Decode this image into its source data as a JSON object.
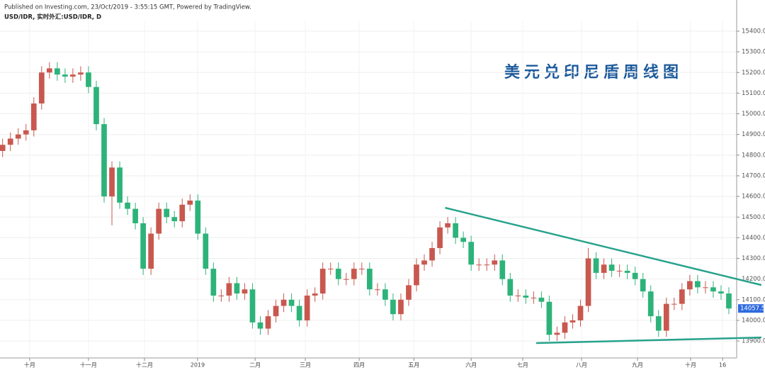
{
  "chart_data": {
    "type": "candlestick",
    "published": "Published on Investing.com, 23/Oct/2019 - 3:55:15 GMT, Powered by TradingView.",
    "symbol": "USD/IDR, 实时外汇:USD/IDR, D",
    "title": "美元兑印尼盾周线图",
    "up_color": "#c8584f",
    "down_color": "#2db37a",
    "trendline_color": "#26a28c",
    "price_label_color": "#2f6ae0",
    "grid": true,
    "xlim": [
      -1,
      282
    ],
    "ylim": [
      13818,
      15448
    ],
    "xticks": [
      {
        "value": 10.4,
        "label": "十月"
      },
      {
        "value": 33,
        "label": "十一月"
      },
      {
        "value": 54.5,
        "label": "十二月"
      },
      {
        "value": 74.9,
        "label": "2019"
      },
      {
        "value": 97,
        "label": "二月"
      },
      {
        "value": 116.3,
        "label": "三月"
      },
      {
        "value": 137,
        "label": "四月"
      },
      {
        "value": 158,
        "label": "五月"
      },
      {
        "value": 180,
        "label": "六月"
      },
      {
        "value": 199.8,
        "label": "七月"
      },
      {
        "value": 222.4,
        "label": "八月"
      },
      {
        "value": 243.9,
        "label": "九月"
      },
      {
        "value": 264.3,
        "label": "十月"
      },
      {
        "value": 276.6,
        "label": "16"
      }
    ],
    "yticks": [
      {
        "value": 13900,
        "label": "13900.0"
      },
      {
        "value": 14000,
        "label": "14000.0"
      },
      {
        "value": 14100,
        "label": "14100.0"
      },
      {
        "value": 14200,
        "label": "14200.0"
      },
      {
        "value": 14300,
        "label": "14300.0"
      },
      {
        "value": 14400,
        "label": "14400.0"
      },
      {
        "value": 14500,
        "label": "14500.0"
      },
      {
        "value": 14600,
        "label": "14600.0"
      },
      {
        "value": 14700,
        "label": "14700.0"
      },
      {
        "value": 14800,
        "label": "14800.0"
      },
      {
        "value": 14900,
        "label": "14900.0"
      },
      {
        "value": 15000,
        "label": "15000.0"
      },
      {
        "value": 15100,
        "label": "15100.0"
      },
      {
        "value": 15200,
        "label": "15200.0"
      },
      {
        "value": 15300,
        "label": "15300.0"
      },
      {
        "value": 15400,
        "label": "15400.0"
      }
    ],
    "x": [
      0,
      3,
      6,
      9,
      12,
      15,
      18,
      21,
      24,
      27,
      30,
      33,
      36,
      39,
      42,
      45,
      48,
      51,
      54,
      57,
      60,
      63,
      66,
      69,
      72,
      75,
      78,
      81,
      84,
      87,
      90,
      93,
      96,
      99,
      102,
      105,
      108,
      111,
      114,
      117,
      120,
      123,
      126,
      129,
      132,
      135,
      138,
      141,
      144,
      147,
      150,
      153,
      156,
      159,
      162,
      165,
      168,
      171,
      174,
      177,
      180,
      183,
      186,
      189,
      192,
      195,
      198,
      201,
      204,
      207,
      210,
      213,
      216,
      219,
      222,
      225,
      228,
      231,
      234,
      237,
      240,
      243,
      246,
      249,
      252,
      255,
      258,
      261,
      264,
      267,
      270,
      273,
      276,
      279
    ],
    "open": [
      14820,
      14850,
      14880,
      14900,
      14920,
      15050,
      15200,
      15220,
      15190,
      15180,
      15190,
      15200,
      15130,
      14950,
      14600,
      14740,
      14570,
      14540,
      14470,
      14250,
      14420,
      14540,
      14500,
      14480,
      14560,
      14580,
      14420,
      14250,
      14120,
      14120,
      14180,
      14130,
      14150,
      13990,
      13960,
      14020,
      14070,
      14100,
      14070,
      14000,
      14120,
      14130,
      14250,
      14250,
      14200,
      14200,
      14250,
      14250,
      14150,
      14150,
      14100,
      14030,
      14100,
      14170,
      14270,
      14290,
      14350,
      14450,
      14470,
      14400,
      14380,
      14270,
      14270,
      14270,
      14290,
      14200,
      14120,
      14120,
      14110,
      14110,
      14090,
      13930,
      13940,
      13990,
      14000,
      14070,
      14300,
      14230,
      14270,
      14240,
      14240,
      14230,
      14200,
      14140,
      14020,
      13950,
      14080,
      14080,
      14150,
      14190,
      14160,
      14160,
      14140,
      14130
    ],
    "high": [
      14880,
      14910,
      14930,
      14950,
      15080,
      15230,
      15250,
      15250,
      15220,
      15220,
      15230,
      15230,
      15160,
      14980,
      14770,
      14770,
      14600,
      14570,
      14500,
      14450,
      14570,
      14570,
      14530,
      14590,
      14610,
      14610,
      14450,
      14280,
      14150,
      14210,
      14210,
      14180,
      14180,
      14020,
      14050,
      14100,
      14130,
      14130,
      14100,
      14150,
      14160,
      14280,
      14280,
      14280,
      14230,
      14280,
      14280,
      14280,
      14180,
      14180,
      14130,
      14130,
      14200,
      14300,
      14320,
      14380,
      14480,
      14500,
      14500,
      14430,
      14410,
      14300,
      14300,
      14320,
      14320,
      14230,
      14150,
      14150,
      14140,
      14140,
      14120,
      13970,
      14020,
      14030,
      14100,
      14350,
      14330,
      14300,
      14300,
      14270,
      14270,
      14260,
      14230,
      14170,
      14050,
      14110,
      14110,
      14180,
      14220,
      14220,
      14190,
      14190,
      14170,
      14160
    ],
    "low": [
      14790,
      14820,
      14850,
      14870,
      14890,
      15020,
      15170,
      15160,
      15150,
      15150,
      15160,
      15100,
      14920,
      14570,
      14460,
      14540,
      14510,
      14440,
      14220,
      14220,
      14390,
      14470,
      14450,
      14450,
      14530,
      14390,
      14220,
      14090,
      14090,
      14090,
      14100,
      14100,
      13960,
      13930,
      13930,
      13990,
      14040,
      14040,
      13970,
      13970,
      14090,
      14100,
      14220,
      14170,
      14170,
      14170,
      14220,
      14120,
      14120,
      14070,
      14000,
      14000,
      14070,
      14140,
      14240,
      14260,
      14320,
      14420,
      14370,
      14350,
      14240,
      14240,
      14240,
      14240,
      14170,
      14090,
      14090,
      14080,
      14080,
      14060,
      13900,
      13900,
      13910,
      13960,
      13970,
      14040,
      14200,
      14200,
      14210,
      14210,
      14200,
      14170,
      14110,
      13990,
      13920,
      13920,
      14050,
      14050,
      14120,
      14130,
      14130,
      14110,
      14100,
      14030
    ],
    "close": [
      14850,
      14880,
      14900,
      14920,
      15050,
      15200,
      15220,
      15190,
      15180,
      15190,
      15200,
      15130,
      14950,
      14600,
      14740,
      14570,
      14540,
      14470,
      14250,
      14420,
      14540,
      14500,
      14480,
      14560,
      14580,
      14420,
      14250,
      14120,
      14120,
      14180,
      14130,
      14150,
      13990,
      13960,
      14020,
      14070,
      14100,
      14070,
      14000,
      14120,
      14130,
      14250,
      14250,
      14200,
      14200,
      14250,
      14250,
      14150,
      14150,
      14100,
      14030,
      14100,
      14170,
      14270,
      14290,
      14350,
      14450,
      14470,
      14400,
      14380,
      14270,
      14270,
      14270,
      14290,
      14200,
      14120,
      14120,
      14110,
      14110,
      14090,
      13930,
      13940,
      13990,
      14000,
      14070,
      14300,
      14230,
      14270,
      14240,
      14240,
      14230,
      14200,
      14140,
      14020,
      13950,
      14080,
      14080,
      14150,
      14190,
      14160,
      14160,
      14140,
      14130,
      14057.5
    ],
    "trendlines": [
      {
        "x": [
          170,
          291.5
        ],
        "y": [
          14545,
          14171
        ]
      },
      {
        "x": [
          205,
          291.5
        ],
        "y": [
          13890,
          13917
        ]
      }
    ]
  }
}
